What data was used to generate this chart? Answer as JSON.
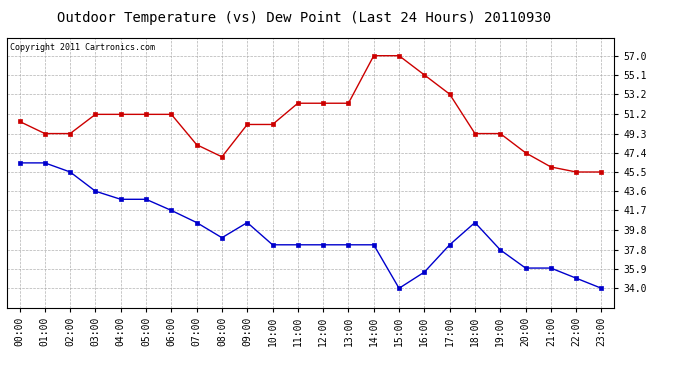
{
  "title": "Outdoor Temperature (vs) Dew Point (Last 24 Hours) 20110930",
  "copyright": "Copyright 2011 Cartronics.com",
  "hours": [
    "00:00",
    "01:00",
    "02:00",
    "03:00",
    "04:00",
    "05:00",
    "06:00",
    "07:00",
    "08:00",
    "09:00",
    "10:00",
    "11:00",
    "12:00",
    "13:00",
    "14:00",
    "15:00",
    "16:00",
    "17:00",
    "18:00",
    "19:00",
    "20:00",
    "21:00",
    "22:00",
    "23:00"
  ],
  "temp": [
    50.5,
    49.3,
    49.3,
    51.2,
    51.2,
    51.2,
    51.2,
    48.2,
    47.0,
    50.2,
    50.2,
    52.3,
    52.3,
    52.3,
    57.0,
    57.0,
    55.1,
    53.2,
    49.3,
    49.3,
    47.4,
    46.0,
    45.5,
    45.5
  ],
  "dewpoint": [
    46.4,
    46.4,
    45.5,
    43.6,
    42.8,
    42.8,
    41.7,
    40.5,
    39.0,
    40.5,
    38.3,
    38.3,
    38.3,
    38.3,
    38.3,
    34.0,
    35.6,
    38.3,
    40.5,
    37.8,
    36.0,
    36.0,
    35.0,
    34.0
  ],
  "temp_color": "#cc0000",
  "dew_color": "#0000cc",
  "bg_color": "#ffffff",
  "grid_color": "#aaaaaa",
  "ylim_min": 32.1,
  "ylim_max": 58.8,
  "yticks": [
    34.0,
    35.9,
    37.8,
    39.8,
    41.7,
    43.6,
    45.5,
    47.4,
    49.3,
    51.2,
    53.2,
    55.1,
    57.0
  ],
  "title_fontsize": 10,
  "copyright_fontsize": 6,
  "tick_fontsize": 7,
  "marker_size": 3
}
